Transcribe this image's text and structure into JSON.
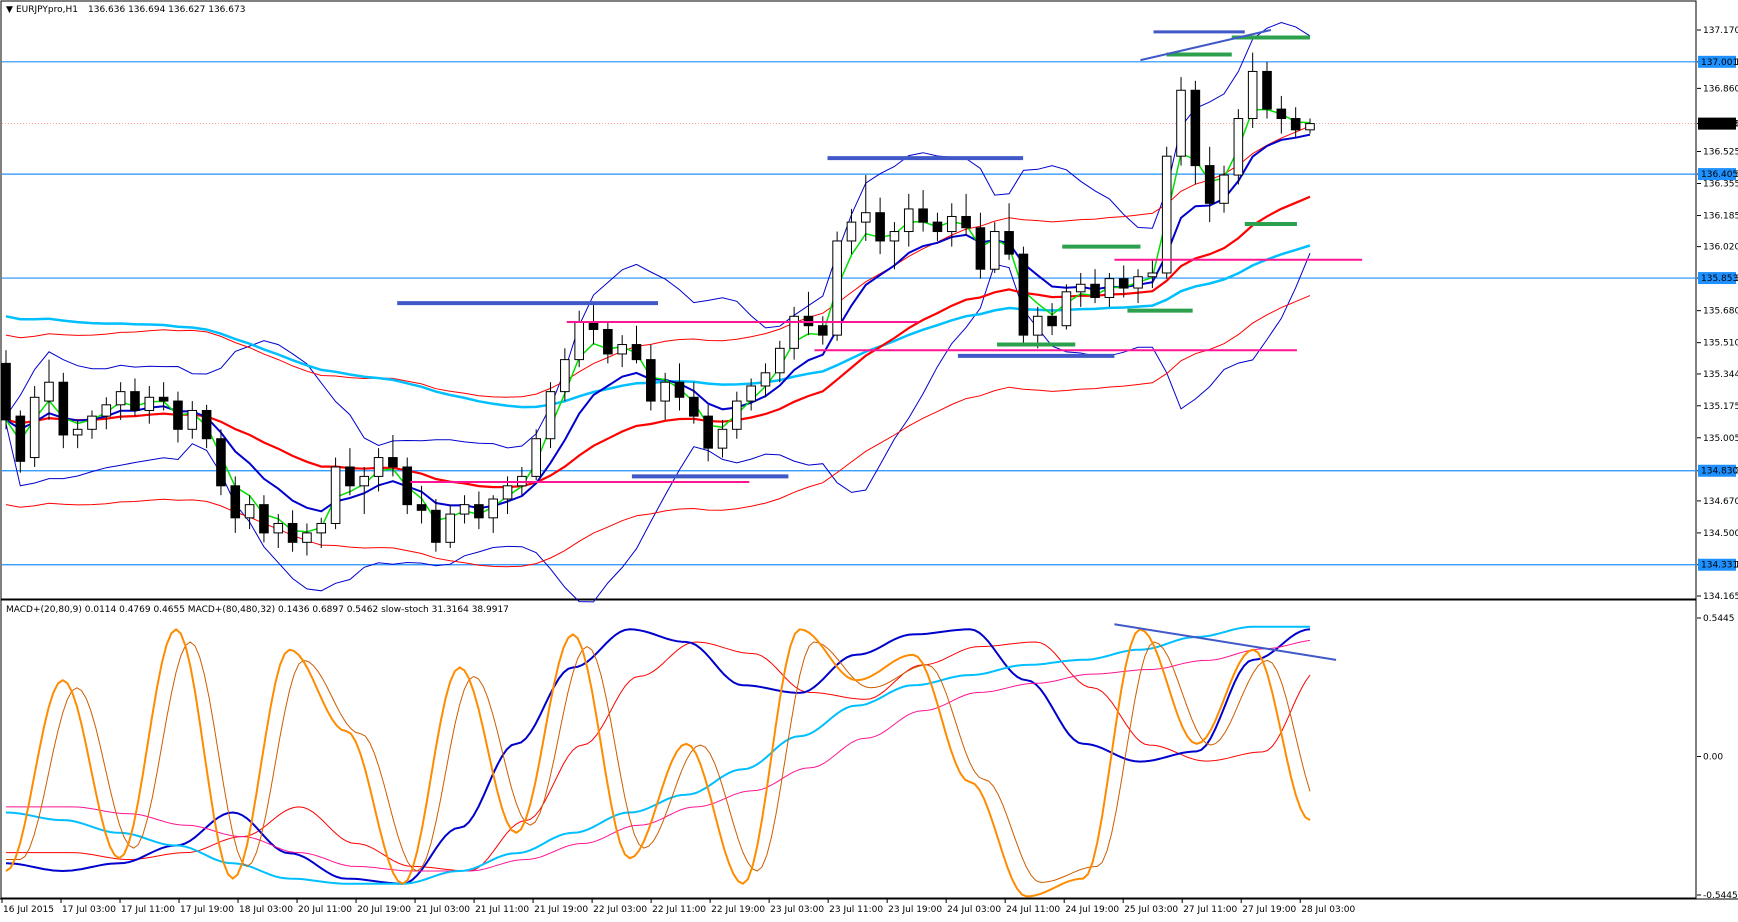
{
  "window": {
    "title": "EURJPYpro,H1",
    "ohlc": "136.636 136.694 136.627 136.673",
    "menu_glyph": "▼"
  },
  "indicator_caption": "MACD+(20,80,9) 0.0114 0.4769 0.4655  MACD+(80,480,32) 0.1436 0.6897 0.5462  slow-stoch 31.3164 38.9917",
  "colors": {
    "background": "#ffffff",
    "frame": "#000000",
    "bull_candle": "#ffffff",
    "bear_candle": "#000000",
    "hline": "#1e90ff",
    "envelope": "#ff0000",
    "bollinger": "#0000cd",
    "ema_fast": "#00e000",
    "ema_mid": "#0000cd",
    "ema_slow": "#ff0000",
    "ema_long": "#00bfff",
    "resistance_pink": "#ff1493",
    "level_blue": "#4159c8",
    "level_green": "#2ca04c",
    "macd_fast": "#0000cd",
    "macd_fast_signal": "#ff0000",
    "macd_slow": "#00bfff",
    "macd_slow_signal": "#ff1493",
    "stoch_k": "#ff8c00",
    "stoch_d": "#cd5c00",
    "price_tag_bg": "#1e90ff",
    "price_tag_text": "#ffffff",
    "current_tag_bg": "#000000"
  },
  "chart_data": [
    {
      "type": "candlestick",
      "symbol": "EURJPYpro",
      "timeframe": "H1",
      "ylim": [
        134.165,
        137.17
      ],
      "y_ticks": [
        "137.170",
        "137.001",
        "136.860",
        "136.673",
        "136.525",
        "136.405",
        "136.355",
        "136.185",
        "136.020",
        "135.853",
        "135.680",
        "135.510",
        "135.344",
        "135.175",
        "135.005",
        "134.830",
        "134.670",
        "134.500",
        "134.331",
        "134.165"
      ],
      "price_tags": [
        {
          "value": 137.001,
          "label": "137.001",
          "kind": "level"
        },
        {
          "value": 136.405,
          "label": "136.405",
          "kind": "level"
        },
        {
          "value": 135.853,
          "label": "135.853",
          "kind": "level"
        },
        {
          "value": 134.83,
          "label": "134.830",
          "kind": "level"
        },
        {
          "value": 134.331,
          "label": "134.331",
          "kind": "level"
        },
        {
          "value": 136.673,
          "label": "136.673",
          "kind": "current"
        }
      ],
      "horizontal_levels": [
        137.001,
        136.405,
        135.853,
        134.83,
        134.331
      ],
      "current_price": 136.673,
      "ohlc": [
        [
          135.4,
          135.47,
          135.05,
          135.1
        ],
        [
          135.12,
          135.15,
          134.82,
          134.88
        ],
        [
          134.9,
          135.28,
          134.85,
          135.22
        ],
        [
          135.2,
          135.42,
          135.1,
          135.3
        ],
        [
          135.3,
          135.35,
          134.95,
          135.02
        ],
        [
          135.02,
          135.1,
          134.95,
          135.05
        ],
        [
          135.05,
          135.15,
          135.0,
          135.12
        ],
        [
          135.12,
          135.22,
          135.05,
          135.18
        ],
        [
          135.18,
          135.3,
          135.1,
          135.25
        ],
        [
          135.25,
          135.32,
          135.12,
          135.15
        ],
        [
          135.15,
          135.28,
          135.08,
          135.22
        ],
        [
          135.22,
          135.3,
          135.15,
          135.2
        ],
        [
          135.2,
          135.25,
          134.98,
          135.05
        ],
        [
          135.05,
          135.2,
          135.0,
          135.15
        ],
        [
          135.15,
          135.18,
          134.95,
          135.0
        ],
        [
          135.0,
          135.05,
          134.7,
          134.75
        ],
        [
          134.75,
          134.8,
          134.5,
          134.58
        ],
        [
          134.58,
          134.7,
          134.52,
          134.65
        ],
        [
          134.65,
          134.7,
          134.45,
          134.5
        ],
        [
          134.5,
          134.6,
          134.42,
          134.55
        ],
        [
          134.55,
          134.62,
          134.4,
          134.45
        ],
        [
          134.45,
          134.55,
          134.38,
          134.5
        ],
        [
          134.5,
          134.58,
          134.42,
          134.55
        ],
        [
          134.55,
          134.9,
          134.52,
          134.85
        ],
        [
          134.85,
          134.95,
          134.7,
          134.75
        ],
        [
          134.75,
          134.85,
          134.6,
          134.8
        ],
        [
          134.8,
          134.95,
          134.72,
          134.9
        ],
        [
          134.9,
          135.02,
          134.8,
          134.85
        ],
        [
          134.85,
          134.9,
          134.6,
          134.65
        ],
        [
          134.65,
          134.75,
          134.55,
          134.62
        ],
        [
          134.62,
          134.68,
          134.4,
          134.45
        ],
        [
          134.45,
          134.65,
          134.42,
          134.6
        ],
        [
          134.6,
          134.7,
          134.55,
          134.65
        ],
        [
          134.65,
          134.72,
          134.52,
          134.58
        ],
        [
          134.58,
          134.7,
          134.5,
          134.68
        ],
        [
          134.68,
          134.8,
          134.6,
          134.75
        ],
        [
          134.75,
          134.85,
          134.7,
          134.8
        ],
        [
          134.8,
          135.05,
          134.78,
          135.0
        ],
        [
          135.0,
          135.3,
          134.95,
          135.25
        ],
        [
          135.25,
          135.48,
          135.2,
          135.42
        ],
        [
          135.42,
          135.68,
          135.38,
          135.62
        ],
        [
          135.62,
          135.72,
          135.5,
          135.58
        ],
        [
          135.58,
          135.62,
          135.4,
          135.45
        ],
        [
          135.45,
          135.55,
          135.38,
          135.5
        ],
        [
          135.5,
          135.6,
          135.4,
          135.42
        ],
        [
          135.42,
          135.5,
          135.15,
          135.2
        ],
        [
          135.2,
          135.35,
          135.1,
          135.3
        ],
        [
          135.3,
          135.4,
          135.15,
          135.22
        ],
        [
          135.22,
          135.3,
          135.08,
          135.12
        ],
        [
          135.12,
          135.18,
          134.88,
          134.95
        ],
        [
          134.95,
          135.1,
          134.9,
          135.05
        ],
        [
          135.05,
          135.25,
          135.0,
          135.2
        ],
        [
          135.2,
          135.32,
          135.15,
          135.28
        ],
        [
          135.28,
          135.4,
          135.22,
          135.35
        ],
        [
          135.35,
          135.52,
          135.3,
          135.48
        ],
        [
          135.48,
          135.7,
          135.42,
          135.65
        ],
        [
          135.65,
          135.78,
          135.55,
          135.6
        ],
        [
          135.6,
          135.65,
          135.5,
          135.55
        ],
        [
          135.55,
          136.1,
          135.52,
          136.05
        ],
        [
          136.05,
          136.22,
          135.98,
          136.15
        ],
        [
          136.15,
          136.4,
          136.05,
          136.2
        ],
        [
          136.2,
          136.28,
          135.98,
          136.05
        ],
        [
          136.05,
          136.15,
          135.9,
          136.1
        ],
        [
          136.1,
          136.3,
          136.02,
          136.22
        ],
        [
          136.22,
          136.32,
          136.1,
          136.15
        ],
        [
          136.15,
          136.2,
          136.05,
          136.1
        ],
        [
          136.1,
          136.25,
          136.02,
          136.18
        ],
        [
          136.18,
          136.3,
          136.08,
          136.12
        ],
        [
          136.12,
          136.2,
          135.85,
          135.9
        ],
        [
          135.9,
          136.15,
          135.88,
          136.1
        ],
        [
          136.1,
          136.25,
          135.95,
          135.98
        ],
        [
          135.98,
          136.02,
          135.5,
          135.55
        ],
        [
          135.55,
          135.7,
          135.48,
          135.65
        ],
        [
          135.65,
          135.72,
          135.55,
          135.6
        ],
        [
          135.6,
          135.82,
          135.58,
          135.78
        ],
        [
          135.78,
          135.88,
          135.7,
          135.82
        ],
        [
          135.82,
          135.9,
          135.72,
          135.75
        ],
        [
          135.75,
          135.88,
          135.7,
          135.85
        ],
        [
          135.85,
          135.92,
          135.75,
          135.8
        ],
        [
          135.8,
          135.9,
          135.72,
          135.86
        ],
        [
          135.86,
          135.95,
          135.8,
          135.88
        ],
        [
          135.88,
          136.55,
          135.85,
          136.5
        ],
        [
          136.5,
          136.92,
          136.45,
          136.85
        ],
        [
          136.85,
          136.9,
          136.35,
          136.45
        ],
        [
          136.45,
          136.55,
          136.15,
          136.25
        ],
        [
          136.25,
          136.45,
          136.2,
          136.4
        ],
        [
          136.4,
          136.75,
          136.35,
          136.7
        ],
        [
          136.7,
          137.05,
          136.65,
          136.95
        ],
        [
          136.95,
          137.0,
          136.7,
          136.75
        ],
        [
          136.75,
          136.82,
          136.62,
          136.7
        ],
        [
          136.7,
          136.76,
          136.6,
          136.64
        ],
        [
          136.64,
          136.7,
          136.62,
          136.673
        ]
      ],
      "x_labels": [
        "16 Jul 2015",
        "17 Jul 03:00",
        "17 Jul 11:00",
        "17 Jul 19:00",
        "18 Jul 03:00",
        "20 Jul 11:00",
        "20 Jul 19:00",
        "21 Jul 03:00",
        "21 Jul 11:00",
        "21 Jul 19:00",
        "22 Jul 03:00",
        "22 Jul 11:00",
        "22 Jul 19:00",
        "23 Jul 03:00",
        "23 Jul 11:00",
        "23 Jul 19:00",
        "24 Jul 03:00",
        "24 Jul 11:00",
        "24 Jul 19:00",
        "25 Jul 03:00",
        "27 Jul 11:00",
        "27 Jul 19:00",
        "28 Jul 03:00"
      ]
    },
    {
      "type": "line",
      "name": "indicator",
      "ylim": [
        -0.5445,
        0.5445
      ],
      "y_ticks": [
        "0.5445",
        "0.00",
        "-0.5445"
      ],
      "series": [
        {
          "name": "MACD+(20,80,9)",
          "values": [
            -0.42,
            -0.45,
            -0.42,
            -0.35,
            -0.22,
            -0.38,
            -0.48,
            -0.5,
            -0.28,
            0.05,
            0.35,
            0.5,
            0.45,
            0.28,
            0.25,
            0.4,
            0.48,
            0.5,
            0.3,
            0.05,
            -0.02,
            0.02,
            0.38,
            0.5
          ]
        },
        {
          "name": "MACD+(80,480,32)",
          "values": [
            -0.22,
            -0.25,
            -0.3,
            -0.35,
            -0.42,
            -0.48,
            -0.5,
            -0.5,
            -0.45,
            -0.38,
            -0.3,
            -0.22,
            -0.15,
            -0.05,
            0.08,
            0.2,
            0.28,
            0.32,
            0.36,
            0.38,
            0.42,
            0.47,
            0.51,
            0.51
          ]
        },
        {
          "name": "slow-stoch",
          "values": [
            -0.45,
            0.3,
            -0.4,
            0.5,
            -0.48,
            0.42,
            0.1,
            -0.5,
            0.35,
            -0.3,
            0.48,
            -0.4,
            0.05,
            -0.5,
            0.5,
            0.3,
            0.4,
            -0.1,
            -0.55,
            -0.48,
            0.5,
            0.05,
            0.42,
            -0.25
          ]
        }
      ]
    }
  ]
}
